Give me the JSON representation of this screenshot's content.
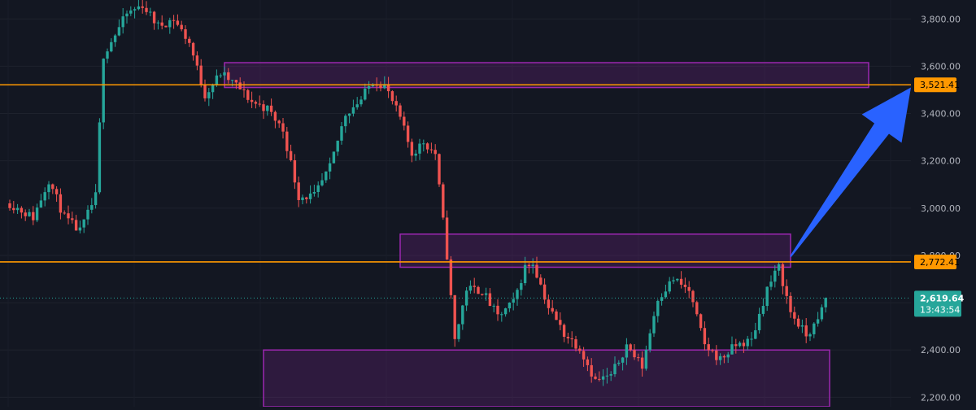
{
  "chart_data": {
    "type": "candlestick",
    "ylim": [
      2160,
      3880
    ],
    "y_ticks": [
      2200,
      2400,
      2600,
      2800,
      3000,
      3200,
      3400,
      3600,
      3800
    ],
    "y_tick_labels": [
      "2,200.00",
      "2,400.00",
      "2,600.00",
      "2,800.00",
      "3,000.00",
      "3,200.00",
      "3,400.00",
      "3,600.00",
      "3,800.00"
    ],
    "grid": true,
    "colors": {
      "up": "#26a69a",
      "down": "#ef5350",
      "level": "#ff9800",
      "zone": "#9c27b0",
      "arrow": "#2962ff",
      "background": "#131722",
      "axis_text": "#b2b5be"
    },
    "levels": [
      {
        "value": 3521.41,
        "label": "3,521.41"
      },
      {
        "value": 2772.41,
        "label": "2,772.41"
      }
    ],
    "current_price": {
      "value": 2619.64,
      "label": "2,619.64",
      "countdown": "13:43:54"
    },
    "zones": [
      {
        "top": 3615,
        "bottom": 3510,
        "from_bar": 55,
        "to_bar": 220
      },
      {
        "top": 2890,
        "bottom": 2750,
        "from_bar": 100,
        "to_bar": 200
      },
      {
        "top": 2400,
        "bottom": 2160,
        "from_bar": 65,
        "to_bar": 210
      }
    ],
    "arrow": {
      "from_bar": 200,
      "from_value": 2795,
      "to_value": 3510
    },
    "bar_count": 210,
    "candles": []
  }
}
